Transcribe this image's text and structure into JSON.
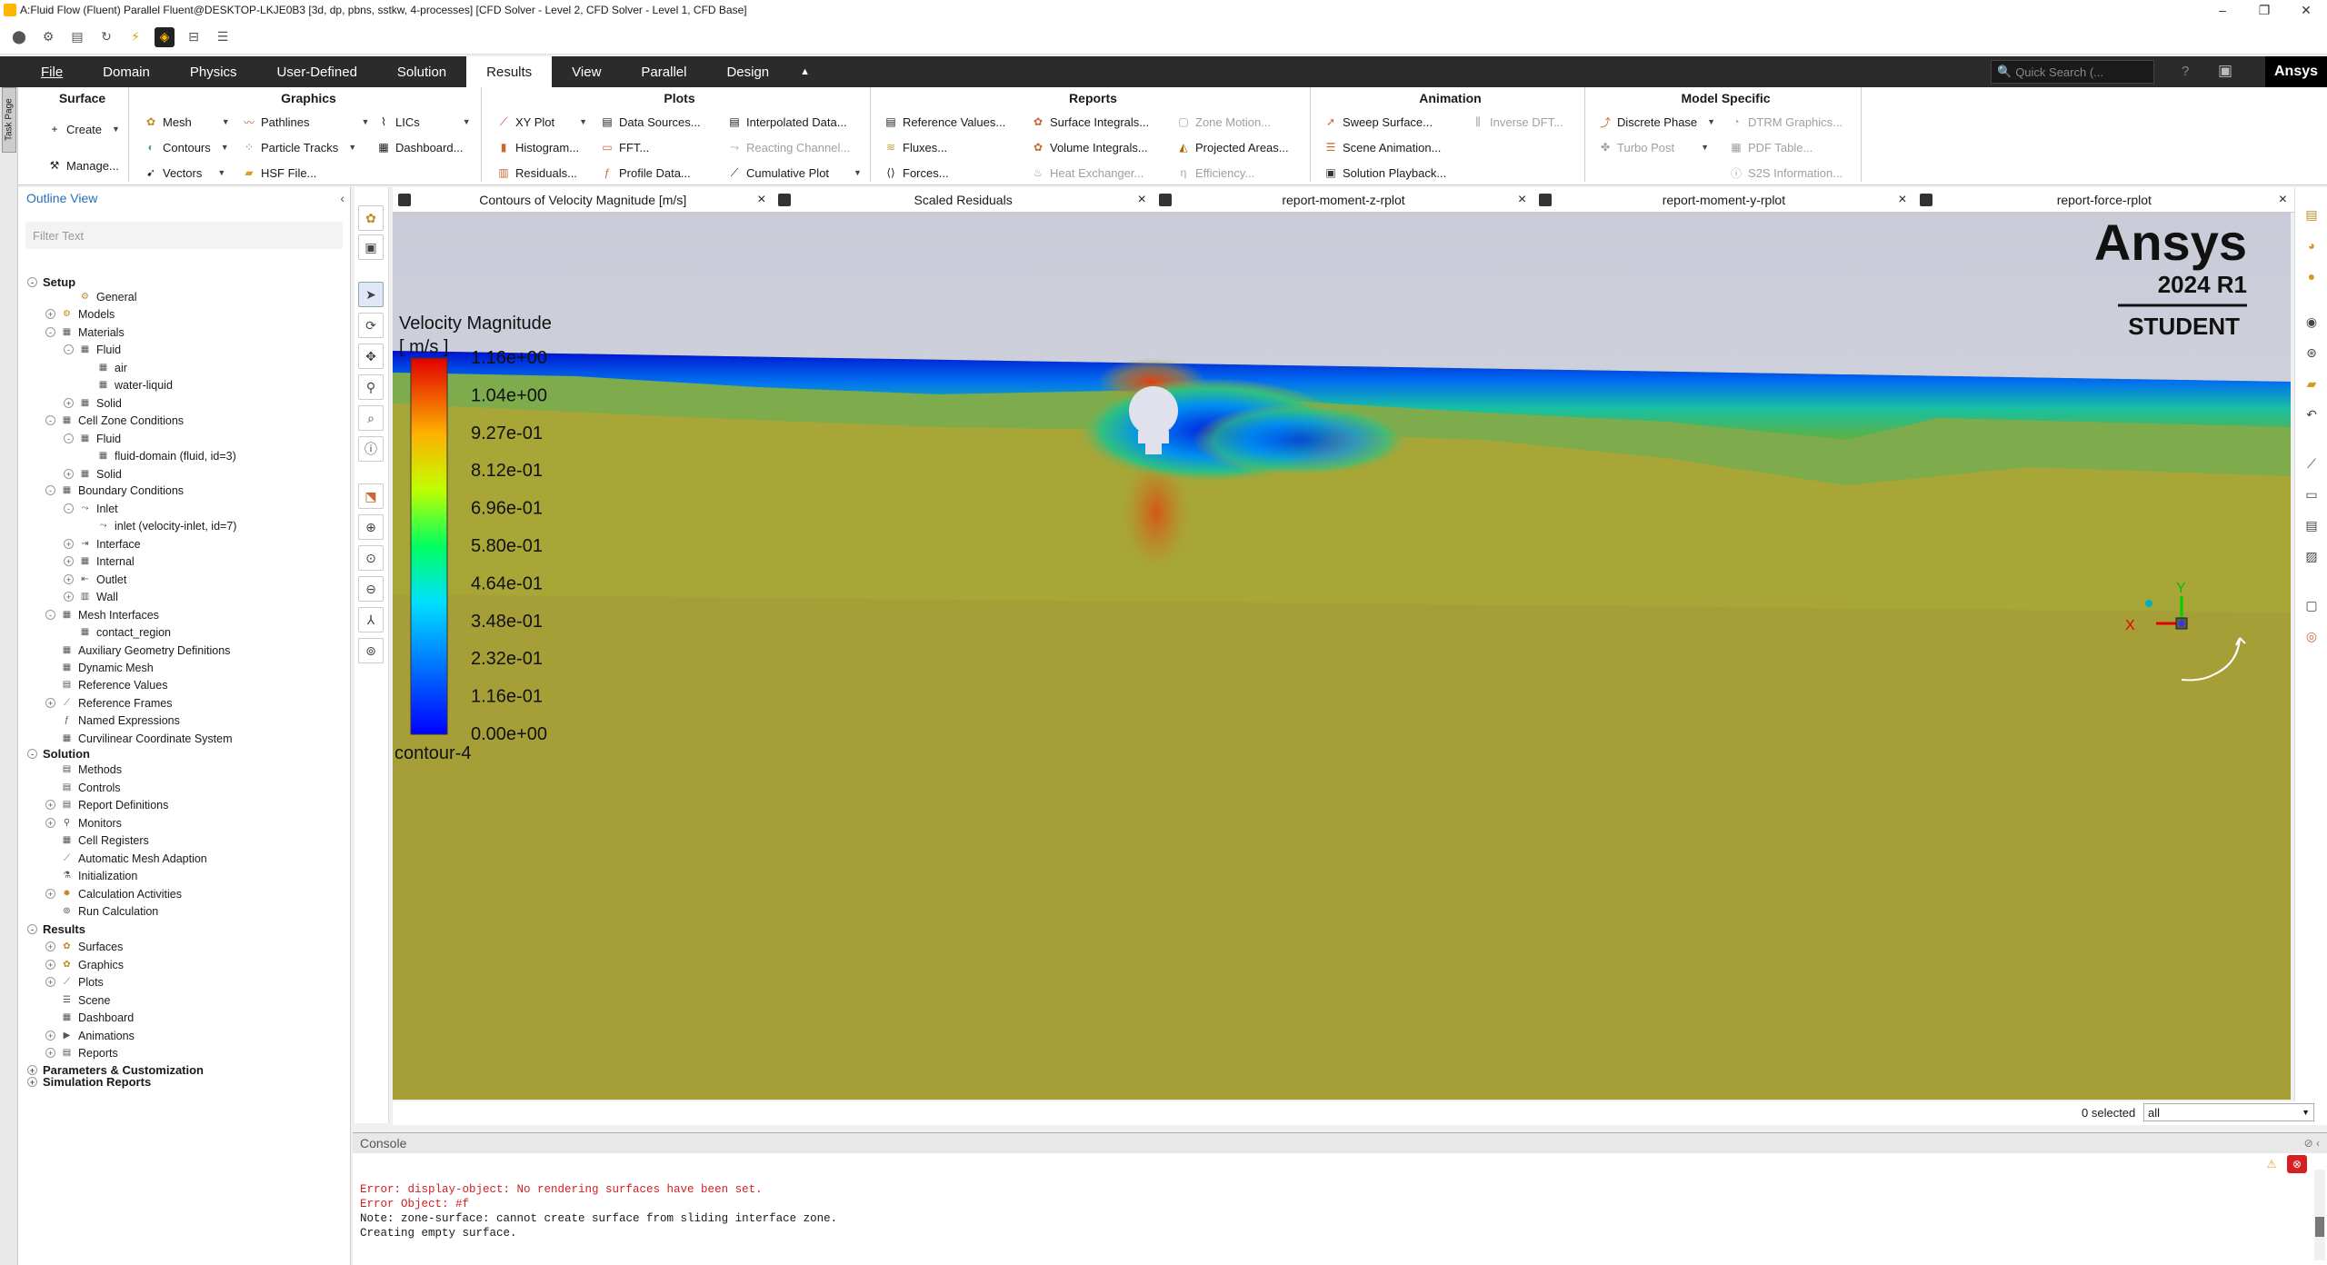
{
  "window": {
    "title": "A:Fluid Flow (Fluent) Parallel Fluent@DESKTOP-LKJE0B3  [3d, dp, pbns, sstkw, 4-processes] [CFD Solver - Level 2, CFD Solver - Level 1, CFD Base]",
    "controls": [
      "–",
      "❐",
      "✕"
    ]
  },
  "menubar": {
    "items": [
      "File",
      "Domain",
      "Physics",
      "User-Defined",
      "Solution",
      "Results",
      "View",
      "Parallel",
      "Design"
    ],
    "active": "Results",
    "search_placeholder": "Quick Search (...",
    "brand": "Ansys"
  },
  "ribbon": {
    "surface": {
      "title": "Surface",
      "create": "Create",
      "manage": "Manage..."
    },
    "graphics": {
      "title": "Graphics",
      "mesh": "Mesh",
      "contours": "Contours",
      "vectors": "Vectors",
      "pathlines": "Pathlines",
      "particle_tracks": "Particle Tracks",
      "hsf_file": "HSF File...",
      "lics": "LICs",
      "dashboard": "Dashboard..."
    },
    "plots": {
      "title": "Plots",
      "xy_plot": "XY Plot",
      "histogram": "Histogram...",
      "residuals": "Residuals...",
      "data_sources": "Data Sources...",
      "fft": "FFT...",
      "profile_data": "Profile Data...",
      "interpolated_data": "Interpolated Data...",
      "reacting_channel": "Reacting Channel...",
      "cumulative_plot": "Cumulative Plot"
    },
    "reports": {
      "title": "Reports",
      "reference_values": "Reference Values...",
      "fluxes": "Fluxes...",
      "forces": "Forces...",
      "surface_integrals": "Surface Integrals...",
      "volume_integrals": "Volume Integrals...",
      "heat_exchanger": "Heat Exchanger...",
      "zone_motion": "Zone Motion...",
      "projected_areas": "Projected Areas...",
      "efficiency": "Efficiency..."
    },
    "animation": {
      "title": "Animation",
      "sweep_surface": "Sweep Surface...",
      "scene_animation": "Scene Animation...",
      "solution_playback": "Solution Playback...",
      "inverse_dft": "Inverse DFT..."
    },
    "model_specific": {
      "title": "Model Specific",
      "discrete_phase": "Discrete Phase",
      "turbo_post": "Turbo Post",
      "dtrm_graphics": "DTRM Graphics...",
      "pdf_table": "PDF Table...",
      "s2s_information": "S2S Information..."
    }
  },
  "outline": {
    "title": "Outline View",
    "filter_placeholder": "Filter Text",
    "nodes": [
      "Setup",
      "General",
      "Models",
      "Materials",
      "Fluid",
      "air",
      "water-liquid",
      "Solid",
      "Cell Zone Conditions",
      "Fluid",
      "fluid-domain (fluid, id=3)",
      "Solid",
      "Boundary Conditions",
      "Inlet",
      "inlet (velocity-inlet, id=7)",
      "Interface",
      "Internal",
      "Outlet",
      "Wall",
      "Mesh Interfaces",
      "contact_region",
      "Auxiliary Geometry Definitions",
      "Dynamic Mesh",
      "Reference Values",
      "Reference Frames",
      "Named Expressions",
      "Curvilinear Coordinate System",
      "Solution",
      "Methods",
      "Controls",
      "Report Definitions",
      "Monitors",
      "Cell Registers",
      "Automatic Mesh Adaption",
      "Initialization",
      "Calculation Activities",
      "Run Calculation",
      "Results",
      "Surfaces",
      "Graphics",
      "Plots",
      "Scene",
      "Dashboard",
      "Animations",
      "Reports",
      "Parameters & Customization",
      "Simulation Reports"
    ]
  },
  "tabs": [
    "Contours of Velocity Magnitude [m/s]",
    "Scaled Residuals",
    "report-moment-z-rplot",
    "report-moment-y-rplot",
    "report-force-rplot"
  ],
  "viewport": {
    "legend_title": "Velocity Magnitude",
    "legend_units": "[ m/s ]",
    "legend_values": [
      "1.16e+00",
      "1.04e+00",
      "9.27e-01",
      "8.12e-01",
      "6.96e-01",
      "5.80e-01",
      "4.64e-01",
      "3.48e-01",
      "2.32e-01",
      "1.16e-01",
      "0.00e+00"
    ],
    "contour_name": "contour-4",
    "watermark_brand": "Ansys",
    "watermark_version": "2024 R1",
    "watermark_edition": "STUDENT",
    "triad_x": "X",
    "triad_y": "Y"
  },
  "selection": {
    "count": "0 selected",
    "filter": "all"
  },
  "console": {
    "title": "Console",
    "lines": [
      {
        "text": "Error: display-object: No rendering surfaces have been set.",
        "type": "error"
      },
      {
        "text": "Error Object: #f",
        "type": "error"
      },
      {
        "text": "Note: zone-surface: cannot create surface from sliding interface zone.",
        "type": "normal"
      },
      {
        "text": "Creating empty surface.",
        "type": "normal"
      }
    ]
  },
  "colors": {
    "accent": "#2a6ebb",
    "menubar_bg": "#2b2b2b",
    "error": "#d42020",
    "background_sky": "#d3d6e0",
    "fluid_bulk": "#a7a637"
  }
}
